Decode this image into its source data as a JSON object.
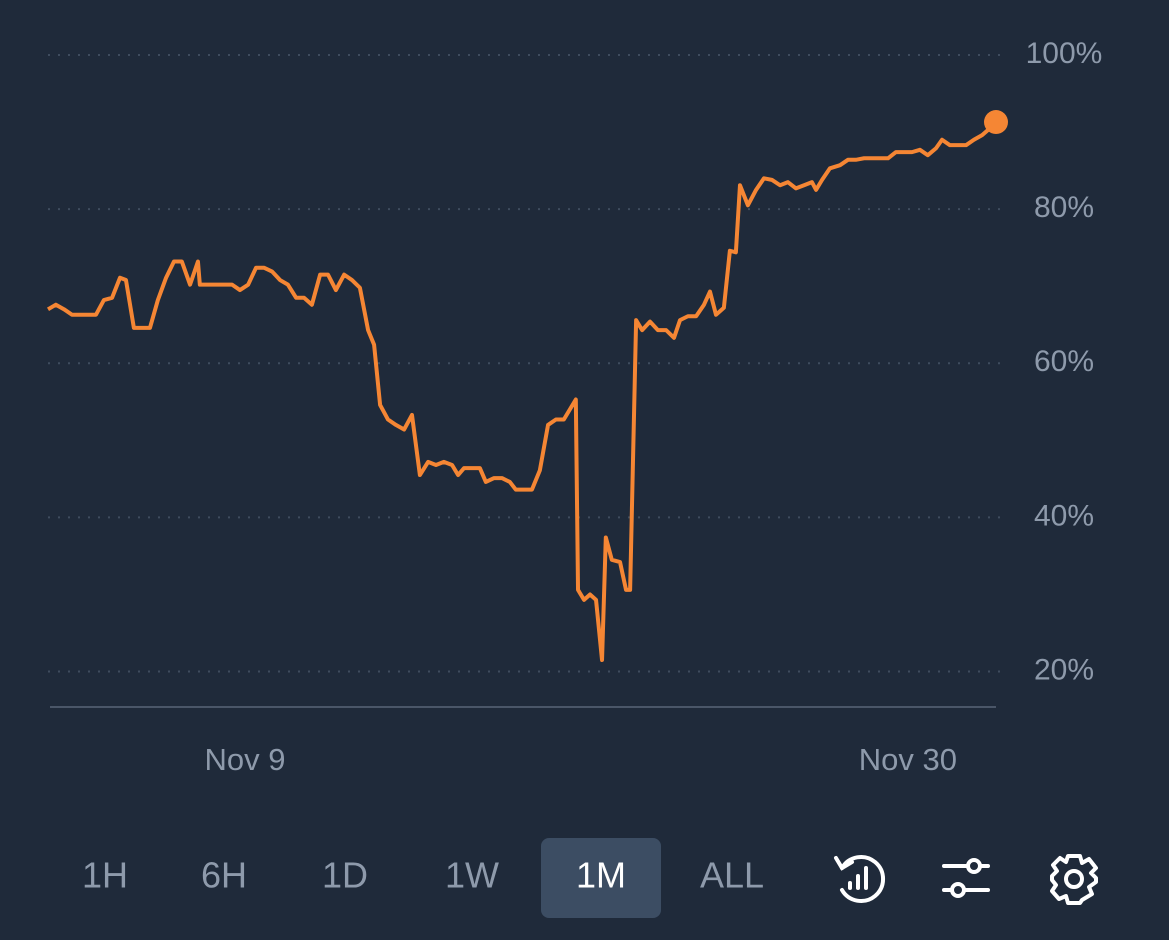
{
  "chart_data": {
    "type": "line",
    "x": [
      2.76,
      3.01,
      3.27,
      3.52,
      3.77,
      4.03,
      4.28,
      4.53,
      4.79,
      5.04,
      5.23,
      5.48,
      5.74,
      5.99,
      6.24,
      6.5,
      6.75,
      7.0,
      7.26,
      7.51,
      7.57,
      7.83,
      8.08,
      8.33,
      8.59,
      8.84,
      9.1,
      9.35,
      9.6,
      9.86,
      10.11,
      10.36,
      10.62,
      10.87,
      11.12,
      11.38,
      11.63,
      11.88,
      12.14,
      12.39,
      12.64,
      12.9,
      13.09,
      13.28,
      13.53,
      13.78,
      14.04,
      14.29,
      14.54,
      14.8,
      15.05,
      15.3,
      15.56,
      15.75,
      15.94,
      16.19,
      16.44,
      16.63,
      16.89,
      17.14,
      17.39,
      17.58,
      17.84,
      18.09,
      18.34,
      18.6,
      18.85,
      19.1,
      19.29,
      19.48,
      19.55,
      19.74,
      19.93,
      20.12,
      20.31,
      20.43,
      20.62,
      20.88,
      21.07,
      21.2,
      21.39,
      21.58,
      21.83,
      22.08,
      22.34,
      22.59,
      22.78,
      23.03,
      23.29,
      23.54,
      23.73,
      23.92,
      24.17,
      24.36,
      24.55,
      24.68,
      24.93,
      25.19,
      25.44,
      25.69,
      25.95,
      26.2,
      26.45,
      26.71,
      26.96,
      27.09,
      27.28,
      27.53,
      27.85,
      28.1,
      28.35,
      28.61,
      28.86,
      29.11,
      29.37,
      29.62,
      29.87,
      30.13,
      30.38,
      30.63,
      30.89,
      31.08,
      31.33,
      31.58,
      31.84,
      32.09,
      32.35,
      32.6,
      32.79
    ],
    "values": [
      67,
      67.6,
      67,
      66.3,
      66.3,
      66.3,
      66.3,
      68.2,
      68.5,
      71.1,
      70.8,
      64.6,
      64.6,
      64.6,
      68.2,
      71.1,
      73.2,
      73.2,
      70.2,
      73.2,
      70.2,
      70.2,
      70.2,
      70.2,
      70.2,
      69.5,
      70.2,
      72.4,
      72.4,
      71.9,
      70.8,
      70.2,
      68.5,
      68.5,
      67.6,
      71.5,
      71.5,
      69.5,
      71.5,
      70.8,
      69.8,
      64.3,
      62.4,
      54.6,
      52.7,
      52.0,
      51.4,
      53.3,
      45.5,
      47.2,
      46.8,
      47.2,
      46.8,
      45.5,
      46.4,
      46.4,
      46.4,
      44.6,
      45.1,
      45.1,
      44.6,
      43.6,
      43.6,
      43.6,
      46.1,
      52.0,
      52.7,
      52.7,
      54.0,
      55.3,
      30.6,
      29.3,
      30.0,
      29.3,
      21.5,
      37.4,
      34.5,
      34.2,
      30.6,
      30.6,
      65.6,
      64.3,
      65.4,
      64.3,
      64.3,
      63.3,
      65.6,
      66.1,
      66.1,
      67.6,
      69.3,
      66.3,
      67.2,
      74.6,
      74.4,
      83.1,
      80.5,
      82.5,
      84.0,
      83.8,
      83.1,
      83.5,
      82.7,
      83.1,
      83.5,
      82.5,
      83.8,
      85.3,
      85.7,
      86.4,
      86.4,
      86.6,
      86.6,
      86.6,
      86.6,
      87.4,
      87.4,
      87.4,
      87.7,
      87.0,
      87.9,
      89.0,
      88.3,
      88.3,
      88.3,
      89.0,
      89.6,
      90.5,
      91.3
    ],
    "color": "#f58634",
    "xlim": [
      2.76,
      32.79
    ],
    "xticks": [
      {
        "value": 9,
        "label": "Nov 9"
      },
      {
        "value": 30,
        "label": "Nov 30"
      }
    ],
    "ylim": [
      15.4,
      100
    ],
    "yticks": [
      {
        "value": 20,
        "label": "20%"
      },
      {
        "value": 40,
        "label": "40%"
      },
      {
        "value": 60,
        "label": "60%"
      },
      {
        "value": 80,
        "label": "80%"
      },
      {
        "value": 100,
        "label": "100%"
      }
    ],
    "grid": true
  },
  "controls": {
    "ranges": [
      "1H",
      "6H",
      "1D",
      "1W",
      "1M",
      "ALL"
    ],
    "active": 4
  }
}
